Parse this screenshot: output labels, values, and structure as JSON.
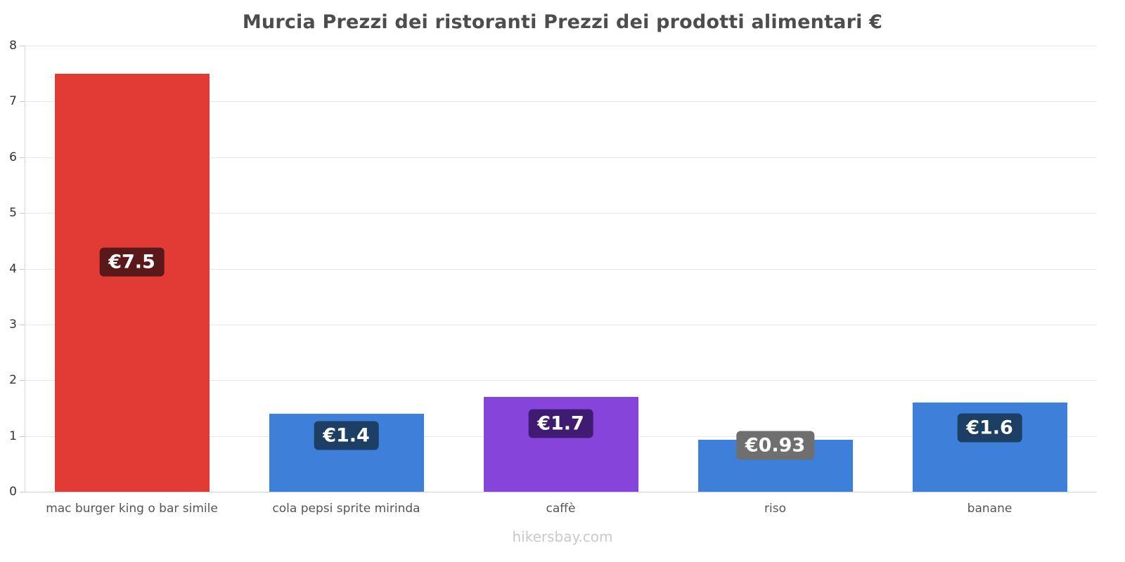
{
  "chart": {
    "footer": "hikersbay.com"
  },
  "chart_data": {
    "type": "bar",
    "title": "Murcia Prezzi dei ristoranti Prezzi dei prodotti alimentari €",
    "categories": [
      "mac burger king o bar simile",
      "cola pepsi sprite mirinda",
      "caffè",
      "riso",
      "banane"
    ],
    "values": [
      7.5,
      1.4,
      1.7,
      0.93,
      1.6
    ],
    "value_labels": [
      "€7.5",
      "€1.4",
      "€1.7",
      "€0.93",
      "€1.6"
    ],
    "bar_colors": [
      "#e23b35",
      "#3d7fd9",
      "#8644db",
      "#3d7fd9",
      "#3d7fd9"
    ],
    "label_bg_colors": [
      "#59181a",
      "#1d3f63",
      "#401b72",
      "#6f6f6f",
      "#1d3f63"
    ],
    "xlabel": "",
    "ylabel": "",
    "ylim": [
      0,
      8
    ],
    "yticks": [
      0,
      1,
      2,
      3,
      4,
      5,
      6,
      7,
      8
    ],
    "grid": true,
    "legend": false,
    "currency": "€"
  }
}
